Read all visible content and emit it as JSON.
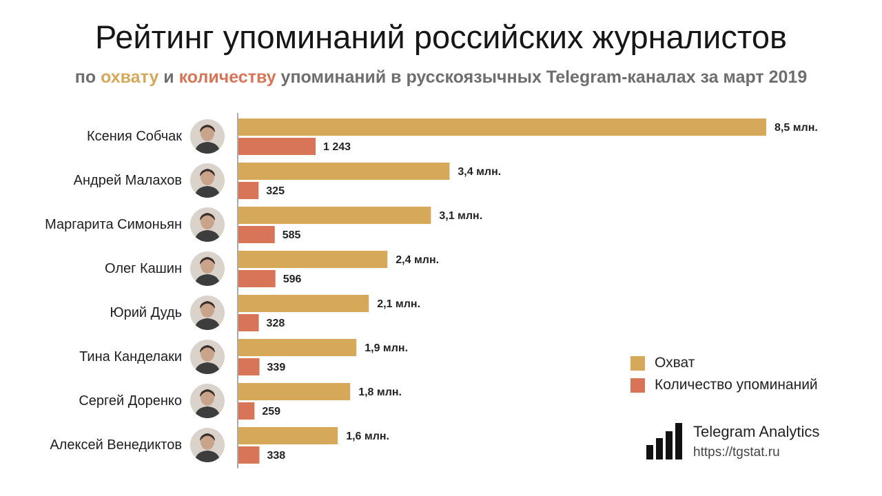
{
  "title": "Рейтинг упоминаний российских журналистов",
  "subtitle": {
    "prefix": "по",
    "kw_reach": "охвату",
    "middle": "и",
    "kw_count": "количеству",
    "suffix": "упоминаний в русскоязычных Telegram-каналах за март 2019"
  },
  "colors": {
    "reach": "#d5a85a",
    "count": "#d87458",
    "axis": "#555555"
  },
  "chart_data": {
    "type": "bar",
    "orientation": "horizontal",
    "categories": [
      "Ксения Собчак",
      "Андрей Малахов",
      "Маргарита Симоньян",
      "Олег Кашин",
      "Юрий Дудь",
      "Тина Канделаки",
      "Сергей Доренко",
      "Алексей Венедиктов"
    ],
    "series": [
      {
        "name": "Охват",
        "values": [
          8.5,
          3.4,
          3.1,
          2.4,
          2.1,
          1.9,
          1.8,
          1.6
        ],
        "labels": [
          "8,5 млн.",
          "3,4 млн.",
          "3,1 млн.",
          "2,4 млн.",
          "2,1 млн.",
          "1,9 млн.",
          "1,8 млн.",
          "1,6 млн."
        ]
      },
      {
        "name": "Количество упоминаний",
        "values": [
          1243,
          325,
          585,
          596,
          328,
          339,
          259,
          338
        ],
        "labels": [
          "1 243",
          "325",
          "585",
          "596",
          "328",
          "339",
          "259",
          "338"
        ]
      }
    ],
    "legend": "right"
  },
  "legend": {
    "reach_label": "Охват",
    "count_label": "Количество упоминаний"
  },
  "brand": {
    "name": "Telegram Analytics",
    "url": "https://tgstat.ru"
  }
}
